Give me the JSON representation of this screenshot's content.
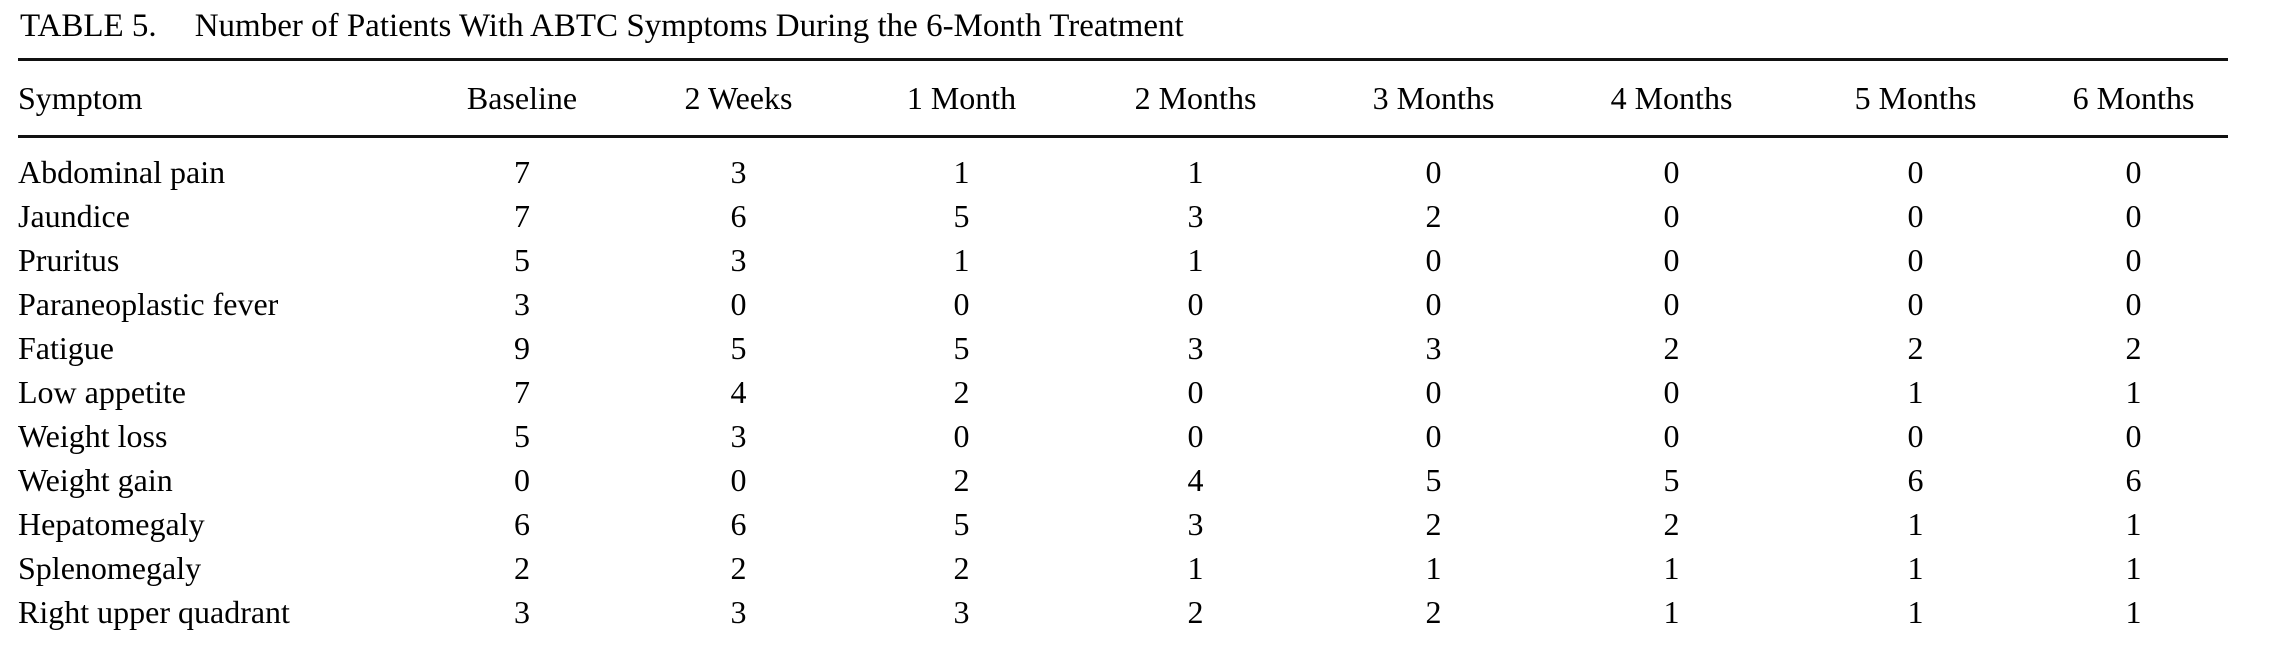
{
  "table": {
    "label": "TABLE 5.",
    "title": "Number of Patients With ABTC Symptoms During the 6-Month Treatment",
    "columns": [
      "Symptom",
      "Baseline",
      "2 Weeks",
      "1 Month",
      "2 Months",
      "3 Months",
      "4 Months",
      "5 Months",
      "6 Months"
    ],
    "rows": [
      {
        "symptom": "Abdominal pain",
        "values": [
          7,
          3,
          1,
          1,
          0,
          0,
          0,
          0
        ]
      },
      {
        "symptom": "Jaundice",
        "values": [
          7,
          6,
          5,
          3,
          2,
          0,
          0,
          0
        ]
      },
      {
        "symptom": "Pruritus",
        "values": [
          5,
          3,
          1,
          1,
          0,
          0,
          0,
          0
        ]
      },
      {
        "symptom": "Paraneoplastic fever",
        "values": [
          3,
          0,
          0,
          0,
          0,
          0,
          0,
          0
        ]
      },
      {
        "symptom": "Fatigue",
        "values": [
          9,
          5,
          5,
          3,
          3,
          2,
          2,
          2
        ]
      },
      {
        "symptom": "Low appetite",
        "values": [
          7,
          4,
          2,
          0,
          0,
          0,
          1,
          1
        ]
      },
      {
        "symptom": "Weight loss",
        "values": [
          5,
          3,
          0,
          0,
          0,
          0,
          0,
          0
        ]
      },
      {
        "symptom": "Weight gain",
        "values": [
          0,
          0,
          2,
          4,
          5,
          5,
          6,
          6
        ]
      },
      {
        "symptom": "Hepatomegaly",
        "values": [
          6,
          6,
          5,
          3,
          2,
          2,
          1,
          1
        ]
      },
      {
        "symptom": "Splenomegaly",
        "values": [
          2,
          2,
          2,
          1,
          1,
          1,
          1,
          1
        ]
      },
      {
        "symptom": "Right upper quadrant",
        "values": [
          3,
          3,
          3,
          2,
          2,
          1,
          1,
          1
        ]
      }
    ]
  },
  "colors": {
    "text": "#000000",
    "background": "#ffffff",
    "rule": "#111111"
  }
}
